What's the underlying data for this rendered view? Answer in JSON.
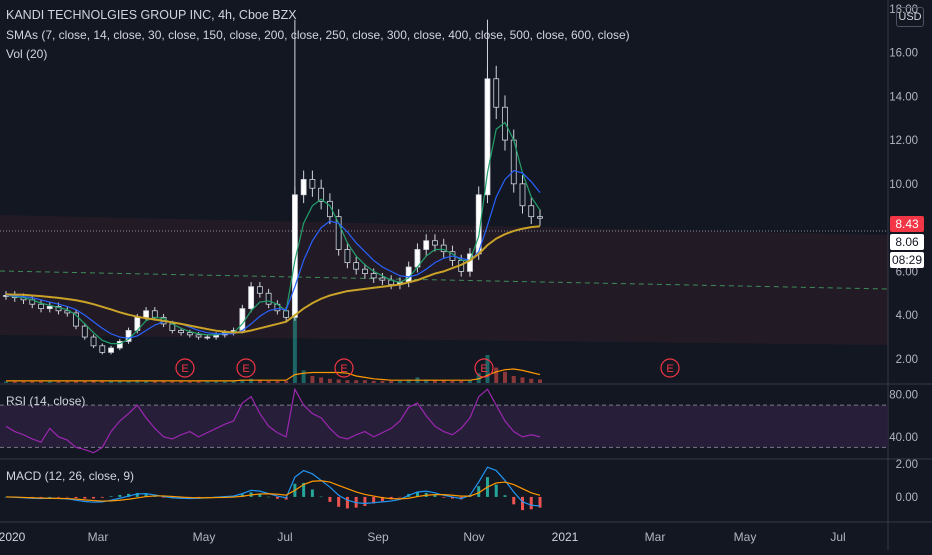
{
  "header": {
    "title": "KANDI TECHNOLGIES GROUP INC, 4h, Cboe BZX",
    "smas_legend": "SMAs (7, close, 14, close, 30, close, 150, close, 200, close, 250, close, 300, close, 400, close, 500, close, 600, close)",
    "vol_legend": "Vol (20)",
    "currency": "USD"
  },
  "price_tags": {
    "last": "8.43",
    "sma": "8.06",
    "countdown": "08:29"
  },
  "panes": {
    "rsi_legend": "RSI (14, close)",
    "macd_legend": "MACD (12, 26, close, 9)"
  },
  "colors": {
    "background": "#131722",
    "up": "#d1d4dc",
    "down": "#ffffff",
    "sma_yellow": "#c9a227",
    "sma_green": "#22a06b",
    "sma_blue": "#2962ff",
    "rsi": "#9c27b0",
    "macd": "#2196f3",
    "signal": "#ff9800",
    "earnings": "#f23645",
    "band": "#2a1e26"
  },
  "chart_data": [
    {
      "type": "line",
      "pane": "price",
      "ylim": [
        0.9,
        18.4
      ],
      "y_ticks": [
        "2.00",
        "4.00",
        "6.00",
        "8.00",
        "10.00",
        "12.00",
        "14.00",
        "16.00",
        "18.00"
      ],
      "x_ticks": [
        "2020",
        "Mar",
        "May",
        "Jul",
        "Sep",
        "Nov",
        "2021",
        "Mar",
        "May",
        "Jul"
      ],
      "earnings_labels": [
        "E",
        "E",
        "E",
        "E",
        "E"
      ],
      "series": [
        {
          "values": [
            4.9,
            4.8,
            4.7,
            4.5,
            4.3,
            4.4,
            4.2,
            4.1,
            3.5,
            3.0,
            2.6,
            2.3,
            2.5,
            2.8,
            3.3,
            3.9,
            4.2,
            3.9,
            3.6,
            3.3,
            3.2,
            3.1,
            3.0,
            3.0,
            3.1,
            3.2,
            3.3,
            4.3,
            5.3,
            5.0,
            4.5,
            4.2,
            3.9,
            9.5,
            10.2,
            9.8,
            9.2,
            8.5,
            7.0,
            6.4,
            6.1,
            5.9,
            5.7,
            5.6,
            5.4,
            5.5,
            6.2,
            7.0,
            7.4,
            7.2,
            6.9,
            6.5,
            6.0,
            6.8,
            9.5,
            14.8,
            13.5,
            12.0,
            10.0,
            9.0,
            8.5,
            8.43
          ]
        },
        {
          "values": [
            4.9,
            4.85,
            4.8,
            4.7,
            4.55,
            4.45,
            4.35,
            4.25,
            4.0,
            3.6,
            3.2,
            2.85,
            2.7,
            2.7,
            2.9,
            3.3,
            3.75,
            3.9,
            3.85,
            3.6,
            3.4,
            3.25,
            3.15,
            3.1,
            3.1,
            3.15,
            3.2,
            3.6,
            4.2,
            4.6,
            4.65,
            4.5,
            4.2,
            6.5,
            8.2,
            9.0,
            9.3,
            9.0,
            8.2,
            7.3,
            6.7,
            6.3,
            6.0,
            5.8,
            5.6,
            5.5,
            5.7,
            6.2,
            6.7,
            7.0,
            7.0,
            6.8,
            6.5,
            6.5,
            7.6,
            10.5,
            12.5,
            12.8,
            12.0,
            10.5,
            9.4,
            8.8
          ]
        },
        {
          "values": [
            4.9,
            4.88,
            4.85,
            4.8,
            4.7,
            4.6,
            4.5,
            4.4,
            4.25,
            4.0,
            3.7,
            3.4,
            3.15,
            3.0,
            2.95,
            3.05,
            3.3,
            3.55,
            3.7,
            3.7,
            3.6,
            3.45,
            3.3,
            3.2,
            3.15,
            3.15,
            3.15,
            3.3,
            3.6,
            3.95,
            4.2,
            4.3,
            4.25,
            5.3,
            6.5,
            7.4,
            8.0,
            8.3,
            8.2,
            7.8,
            7.3,
            6.9,
            6.5,
            6.2,
            6.0,
            5.8,
            5.75,
            5.85,
            6.1,
            6.4,
            6.6,
            6.7,
            6.6,
            6.5,
            6.9,
            8.1,
            9.4,
            10.2,
            10.6,
            10.5,
            10.1,
            9.6
          ]
        },
        {
          "values": [
            4.95,
            4.94,
            4.93,
            4.9,
            4.87,
            4.83,
            4.79,
            4.74,
            4.68,
            4.6,
            4.5,
            4.38,
            4.26,
            4.13,
            4.02,
            3.93,
            3.86,
            3.8,
            3.74,
            3.67,
            3.6,
            3.52,
            3.44,
            3.36,
            3.29,
            3.24,
            3.21,
            3.22,
            3.3,
            3.4,
            3.5,
            3.6,
            3.7,
            4.0,
            4.3,
            4.55,
            4.75,
            4.9,
            5.0,
            5.1,
            5.15,
            5.2,
            5.25,
            5.3,
            5.35,
            5.4,
            5.5,
            5.6,
            5.75,
            5.9,
            6.0,
            6.15,
            6.3,
            6.5,
            6.8,
            7.2,
            7.5,
            7.7,
            7.85,
            7.95,
            8.02,
            8.06
          ]
        }
      ]
    },
    {
      "type": "bar",
      "pane": "volume",
      "ylim": [
        0,
        100
      ],
      "values": [
        2,
        2,
        2,
        2,
        2,
        3,
        2,
        2,
        3,
        3,
        4,
        3,
        3,
        3,
        3,
        4,
        3,
        3,
        3,
        2,
        2,
        2,
        2,
        2,
        2,
        2,
        3,
        5,
        6,
        5,
        3,
        3,
        3,
        100,
        18,
        10,
        8,
        6,
        5,
        4,
        4,
        4,
        3,
        3,
        3,
        3,
        5,
        8,
        5,
        4,
        4,
        3,
        3,
        4,
        14,
        40,
        22,
        16,
        10,
        8,
        6,
        5
      ],
      "series": [
        {
          "values": [
            3,
            3,
            3,
            3,
            3,
            3,
            3,
            3,
            3,
            3,
            3,
            3,
            3,
            3,
            3,
            3,
            3,
            3,
            3,
            3,
            3,
            3,
            3,
            3,
            3,
            3,
            3,
            4,
            4,
            4,
            4,
            4,
            4,
            12,
            14,
            15,
            15,
            15,
            15,
            14,
            10,
            8,
            6,
            5,
            4,
            4,
            4,
            4,
            4,
            4,
            4,
            4,
            4,
            4,
            6,
            11,
            16,
            19,
            20,
            18,
            15,
            12
          ]
        }
      ]
    },
    {
      "type": "line",
      "pane": "rsi",
      "ylim": [
        20,
        90
      ],
      "y_ticks": [
        "80.00",
        "40.00"
      ],
      "bands": [
        70,
        30
      ],
      "series": [
        {
          "values": [
            50,
            45,
            42,
            38,
            35,
            48,
            40,
            37,
            30,
            28,
            25,
            30,
            45,
            55,
            62,
            70,
            58,
            48,
            40,
            38,
            42,
            45,
            40,
            44,
            48,
            52,
            55,
            72,
            78,
            62,
            50,
            44,
            40,
            85,
            70,
            62,
            58,
            48,
            40,
            38,
            42,
            45,
            40,
            44,
            48,
            55,
            68,
            72,
            60,
            50,
            45,
            42,
            48,
            58,
            78,
            85,
            70,
            55,
            45,
            40,
            42,
            40
          ]
        }
      ]
    },
    {
      "type": "line",
      "pane": "macd",
      "ylim": [
        -1.4,
        2.3
      ],
      "y_ticks": [
        "2.00",
        "0.00"
      ],
      "series": [
        {
          "values": [
            0,
            -0.02,
            -0.05,
            -0.08,
            -0.1,
            -0.08,
            -0.1,
            -0.12,
            -0.2,
            -0.28,
            -0.32,
            -0.3,
            -0.2,
            -0.08,
            0.05,
            0.18,
            0.2,
            0.12,
            0.02,
            -0.05,
            -0.08,
            -0.1,
            -0.08,
            -0.05,
            -0.02,
            0.02,
            0.05,
            0.2,
            0.4,
            0.35,
            0.2,
            0.05,
            -0.05,
            1.2,
            1.6,
            1.4,
            1.0,
            0.6,
            0.1,
            -0.2,
            -0.35,
            -0.4,
            -0.35,
            -0.3,
            -0.25,
            -0.15,
            0.1,
            0.3,
            0.35,
            0.25,
            0.1,
            0,
            -0.1,
            0.1,
            0.9,
            1.8,
            1.6,
            1.0,
            0.3,
            -0.3,
            -0.5,
            -0.55
          ]
        },
        {
          "values": [
            0,
            -0.01,
            -0.03,
            -0.05,
            -0.07,
            -0.08,
            -0.09,
            -0.1,
            -0.13,
            -0.18,
            -0.22,
            -0.25,
            -0.24,
            -0.2,
            -0.14,
            -0.06,
            0.02,
            0.06,
            0.06,
            0.03,
            -0.01,
            -0.04,
            -0.05,
            -0.05,
            -0.04,
            -0.03,
            -0.01,
            0.04,
            0.12,
            0.18,
            0.19,
            0.16,
            0.11,
            0.4,
            0.75,
            0.95,
            0.98,
            0.9,
            0.7,
            0.5,
            0.3,
            0.15,
            0.05,
            -0.05,
            -0.1,
            -0.12,
            -0.08,
            0.02,
            0.1,
            0.14,
            0.14,
            0.1,
            0.05,
            0.05,
            0.25,
            0.6,
            0.85,
            0.9,
            0.75,
            0.5,
            0.25,
            0.1
          ]
        }
      ]
    }
  ]
}
